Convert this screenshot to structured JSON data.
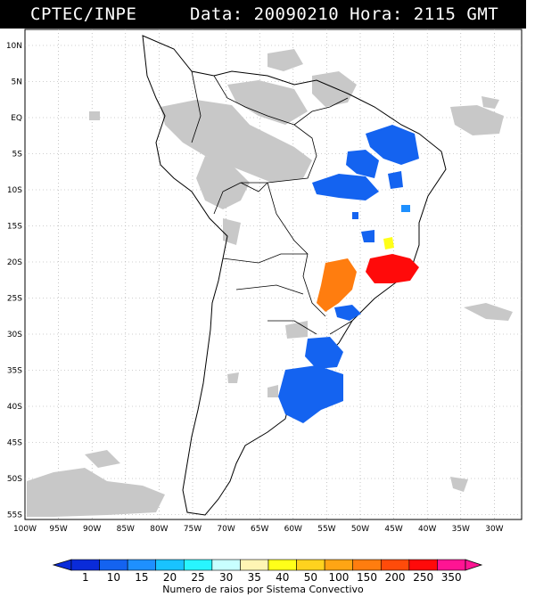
{
  "header": {
    "source": "CPTEC/INPE",
    "datetime": "Data: 20090210 Hora: 2115 GMT"
  },
  "map": {
    "lat_labels": [
      "10N",
      "5N",
      "EQ",
      "5S",
      "10S",
      "15S",
      "20S",
      "25S",
      "30S",
      "35S",
      "40S",
      "45S",
      "50S",
      "55S"
    ],
    "lon_labels": [
      "100W",
      "95W",
      "90W",
      "85W",
      "80W",
      "75W",
      "70W",
      "65W",
      "60W",
      "55W",
      "50W",
      "45W",
      "40W",
      "35W",
      "30W"
    ],
    "colors": {
      "cloud": "#c8c8c8",
      "coast": "#000000",
      "grid": "#a0a0a0"
    }
  },
  "legend": {
    "ticks": [
      "1",
      "10",
      "15",
      "20",
      "25",
      "30",
      "35",
      "40",
      "50",
      "100",
      "150",
      "200",
      "250",
      "350"
    ],
    "colors": [
      "#0a2bd9",
      "#1463f0",
      "#1e90ff",
      "#19c3ff",
      "#28f5ff",
      "#c8ffff",
      "#fff5b4",
      "#ffff19",
      "#ffd21e",
      "#ffa514",
      "#ff7d0f",
      "#ff4b0a",
      "#ff0a0a",
      "#ff1493"
    ],
    "caption": "Numero de raios por Sistema Convectivo"
  }
}
